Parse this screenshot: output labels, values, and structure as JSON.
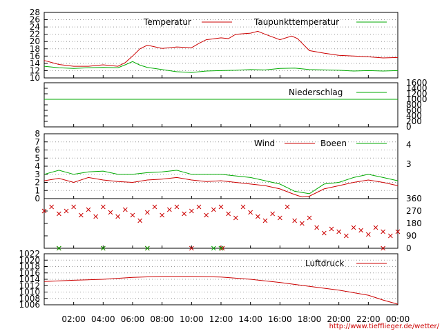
{
  "chart_data": [
    {
      "type": "line",
      "name": "temperature",
      "ylim": [
        10,
        28
      ],
      "yticks": [
        "28",
        "26",
        "24",
        "22",
        "20",
        "18",
        "16",
        "14",
        "12",
        "10"
      ],
      "grid": true,
      "legend_placement": "top",
      "series": [
        {
          "name": "Temperatur",
          "color": "#cc0000",
          "points": [
            [
              0,
              14.8
            ],
            [
              1,
              13.7
            ],
            [
              2,
              13.2
            ],
            [
              3,
              13.2
            ],
            [
              4,
              13.6
            ],
            [
              5,
              13.2
            ],
            [
              5.5,
              14.2
            ],
            [
              6,
              16.0
            ],
            [
              6.5,
              18.0
            ],
            [
              7,
              19.0
            ],
            [
              8,
              18.1
            ],
            [
              9,
              18.5
            ],
            [
              10,
              18.3
            ],
            [
              10.5,
              19.5
            ],
            [
              11,
              20.5
            ],
            [
              12,
              21.0
            ],
            [
              12.5,
              20.8
            ],
            [
              13,
              22.0
            ],
            [
              14,
              22.3
            ],
            [
              14.5,
              22.8
            ],
            [
              15,
              22.0
            ],
            [
              16,
              20.5
            ],
            [
              16.8,
              21.5
            ],
            [
              17.2,
              20.8
            ],
            [
              18,
              17.5
            ],
            [
              19,
              16.8
            ],
            [
              20,
              16.2
            ],
            [
              21,
              16.0
            ],
            [
              22,
              15.8
            ],
            [
              23,
              15.5
            ],
            [
              24,
              15.6
            ]
          ]
        },
        {
          "name": "Taupunkttemperatur",
          "color": "#00aa00",
          "points": [
            [
              0,
              13.2
            ],
            [
              1,
              12.8
            ],
            [
              2,
              12.6
            ],
            [
              3,
              12.8
            ],
            [
              4,
              12.9
            ],
            [
              5,
              12.8
            ],
            [
              5.5,
              13.6
            ],
            [
              6,
              14.5
            ],
            [
              6.5,
              13.5
            ],
            [
              7,
              12.9
            ],
            [
              8,
              12.3
            ],
            [
              9,
              11.7
            ],
            [
              10,
              11.5
            ],
            [
              11,
              11.9
            ],
            [
              12,
              12.0
            ],
            [
              13,
              12.1
            ],
            [
              14,
              12.3
            ],
            [
              15,
              12.2
            ],
            [
              16,
              12.6
            ],
            [
              17,
              12.7
            ],
            [
              18,
              12.3
            ],
            [
              19,
              12.2
            ],
            [
              20,
              12.1
            ],
            [
              21,
              11.9
            ],
            [
              22,
              12.0
            ],
            [
              23,
              11.9
            ],
            [
              24,
              12.0
            ]
          ]
        }
      ]
    },
    {
      "type": "line",
      "name": "precipitation",
      "ylim": [
        0,
        1600
      ],
      "yticks": [
        "1600",
        "1400",
        "1200",
        "1000",
        "800",
        "600",
        "400",
        "200",
        "0"
      ],
      "grid": false,
      "series": [
        {
          "name": "Niederschlag",
          "color": "#00aa00",
          "points": [
            [
              0,
              1000
            ],
            [
              24,
              1000
            ]
          ]
        }
      ]
    },
    {
      "type": "line",
      "name": "wind",
      "ylim": [
        0,
        8
      ],
      "yticks": [
        "8",
        "7",
        "6",
        "5",
        "4",
        "3",
        "2",
        "1",
        "0"
      ],
      "right_ticks": [
        "4",
        "3"
      ],
      "grid": true,
      "series": [
        {
          "name": "Wind",
          "color": "#cc0000",
          "points": [
            [
              0,
              2.2
            ],
            [
              1,
              2.5
            ],
            [
              2,
              2.0
            ],
            [
              3,
              2.6
            ],
            [
              4,
              2.3
            ],
            [
              5,
              2.1
            ],
            [
              6,
              2.0
            ],
            [
              7,
              2.3
            ],
            [
              8,
              2.4
            ],
            [
              9,
              2.6
            ],
            [
              10,
              2.3
            ],
            [
              11,
              2.1
            ],
            [
              12,
              2.2
            ],
            [
              13,
              2.0
            ],
            [
              14,
              1.8
            ],
            [
              15,
              1.6
            ],
            [
              16,
              1.2
            ],
            [
              17,
              0.5
            ],
            [
              17.5,
              0.2
            ],
            [
              18,
              0.3
            ],
            [
              19,
              1.2
            ],
            [
              20,
              1.6
            ],
            [
              21,
              2.0
            ],
            [
              22,
              2.3
            ],
            [
              23,
              2.0
            ],
            [
              24,
              1.6
            ]
          ]
        },
        {
          "name": "Boeen",
          "color": "#00aa00",
          "points": [
            [
              0,
              3.0
            ],
            [
              1,
              3.5
            ],
            [
              2,
              3.0
            ],
            [
              3,
              3.3
            ],
            [
              4,
              3.4
            ],
            [
              5,
              3.0
            ],
            [
              6,
              3.0
            ],
            [
              7,
              3.2
            ],
            [
              8,
              3.3
            ],
            [
              9,
              3.5
            ],
            [
              10,
              3.0
            ],
            [
              11,
              3.0
            ],
            [
              12,
              3.0
            ],
            [
              13,
              2.8
            ],
            [
              14,
              2.6
            ],
            [
              15,
              2.2
            ],
            [
              16,
              1.8
            ],
            [
              17,
              0.9
            ],
            [
              18,
              0.6
            ],
            [
              19,
              1.8
            ],
            [
              20,
              2.0
            ],
            [
              21,
              2.6
            ],
            [
              22,
              3.0
            ],
            [
              23,
              2.6
            ],
            [
              24,
              2.2
            ]
          ]
        }
      ]
    },
    {
      "type": "scatter",
      "name": "wind-direction",
      "ylim": [
        0,
        360
      ],
      "yticks": [
        "360",
        "270",
        "180",
        "90",
        "0"
      ],
      "grid": false,
      "series": [
        {
          "name": "",
          "color": "#cc0000",
          "points": [
            [
              0,
              270
            ],
            [
              0.5,
              300
            ],
            [
              1,
              250
            ],
            [
              1.5,
              270
            ],
            [
              2,
              300
            ],
            [
              2.5,
              240
            ],
            [
              3,
              280
            ],
            [
              3.5,
              230
            ],
            [
              4,
              300
            ],
            [
              4.5,
              260
            ],
            [
              5,
              230
            ],
            [
              5.5,
              280
            ],
            [
              6,
              240
            ],
            [
              6.5,
              200
            ],
            [
              7,
              260
            ],
            [
              7.5,
              300
            ],
            [
              8,
              240
            ],
            [
              8.5,
              280
            ],
            [
              9,
              300
            ],
            [
              9.5,
              250
            ],
            [
              10,
              270
            ],
            [
              10.5,
              300
            ],
            [
              11,
              240
            ],
            [
              11.5,
              280
            ],
            [
              12,
              300
            ],
            [
              12.5,
              250
            ],
            [
              13,
              220
            ],
            [
              13.5,
              300
            ],
            [
              14,
              260
            ],
            [
              14.5,
              230
            ],
            [
              15,
              200
            ],
            [
              15.5,
              250
            ],
            [
              16,
              220
            ],
            [
              16.5,
              300
            ],
            [
              17,
              200
            ],
            [
              17.5,
              180
            ],
            [
              18,
              220
            ],
            [
              18.5,
              150
            ],
            [
              19,
              110
            ],
            [
              19.5,
              140
            ],
            [
              20,
              120
            ],
            [
              20.5,
              90
            ],
            [
              21,
              150
            ],
            [
              21.5,
              130
            ],
            [
              22,
              100
            ],
            [
              22.5,
              150
            ],
            [
              23,
              120
            ],
            [
              23.5,
              90
            ],
            [
              24,
              120
            ],
            [
              1,
              0
            ],
            [
              4,
              0
            ],
            [
              7,
              0
            ],
            [
              10,
              0
            ],
            [
              12,
              0
            ],
            [
              12.1,
              0
            ],
            [
              23,
              0
            ]
          ]
        },
        {
          "name": "",
          "color": "#00aa00",
          "points": [
            [
              1,
              0
            ],
            [
              4,
              0
            ],
            [
              7,
              0
            ],
            [
              11.5,
              0
            ],
            [
              12,
              0
            ]
          ]
        }
      ]
    },
    {
      "type": "line",
      "name": "pressure",
      "ylim": [
        1006,
        1022
      ],
      "yticks": [
        "1022",
        "1020",
        "1018",
        "1016",
        "1014",
        "1012",
        "1010",
        "1008",
        "1006"
      ],
      "grid": true,
      "series": [
        {
          "name": "Luftdruck",
          "color": "#cc0000",
          "points": [
            [
              0,
              1013.3
            ],
            [
              2,
              1013.7
            ],
            [
              4,
              1014.0
            ],
            [
              6,
              1014.6
            ],
            [
              8,
              1014.9
            ],
            [
              10,
              1014.9
            ],
            [
              12,
              1014.7
            ],
            [
              14,
              1014.0
            ],
            [
              16,
              1013.0
            ],
            [
              18,
              1011.8
            ],
            [
              20,
              1010.6
            ],
            [
              22,
              1009.0
            ],
            [
              23,
              1007.5
            ],
            [
              24,
              1006.2
            ]
          ]
        }
      ]
    }
  ],
  "x_axis": {
    "ticks": [
      "02:00",
      "04:00",
      "06:00",
      "08:00",
      "10:00",
      "12:00",
      "14:00",
      "16:00",
      "18:00",
      "20:00",
      "22:00",
      "00:00"
    ],
    "range_hours": [
      0,
      24
    ]
  },
  "footer_url": "http://www.tiefflieger.de/wetter/"
}
